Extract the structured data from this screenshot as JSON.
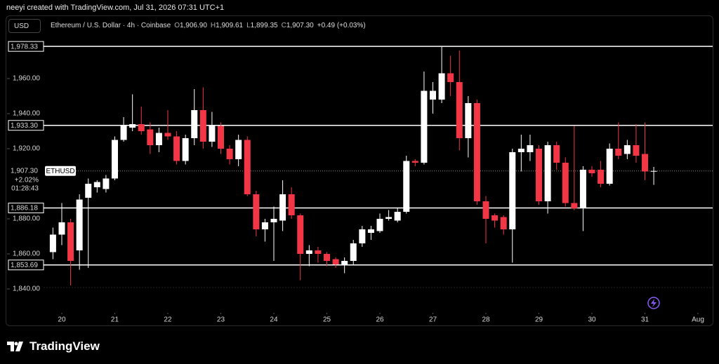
{
  "header": {
    "credit": "neeyi created with TradingView.com, Jul 31, 2026 07:31 UTC+1"
  },
  "chart_data": {
    "type": "candlestick",
    "currency": "USD",
    "symbol": "Ethereum / U.S. Dollar · 4h · Coinbase",
    "ohlc_legend": [
      {
        "key": "O",
        "label": "1,906.90"
      },
      {
        "key": "H",
        "label": "1,909.61"
      },
      {
        "key": "L",
        "label": "1,899.35"
      },
      {
        "key": "C",
        "label": "1,907.30"
      }
    ],
    "change": "+0.49 (+0.03%)",
    "x": [
      19.8333,
      20,
      20.1667,
      20.3333,
      20.5,
      20.6667,
      20.8333,
      21,
      21.1667,
      21.3333,
      21.5,
      21.6667,
      21.8333,
      22,
      22.1667,
      22.3333,
      22.5,
      22.6667,
      22.8333,
      23,
      23.1667,
      23.3333,
      23.5,
      23.6667,
      23.8333,
      24,
      24.1667,
      24.3333,
      24.5,
      24.6667,
      24.8333,
      25,
      25.1667,
      25.3333,
      25.5,
      25.6667,
      25.8333,
      26,
      26.1667,
      26.3333,
      26.5,
      26.6667,
      26.8333,
      27,
      27.1667,
      27.3333,
      27.5,
      27.6667,
      27.8333,
      28,
      28.1667,
      28.3333,
      28.5,
      28.6667,
      28.8333,
      29,
      29.1667,
      29.3333,
      29.5,
      29.6667,
      29.8333,
      30,
      30.1667,
      30.3333,
      30.5,
      30.6667,
      30.8333,
      31,
      31.1667
    ],
    "open": [
      1861,
      1871,
      1878,
      1862,
      1892,
      1898,
      1897,
      1903,
      1925,
      1932,
      1934,
      1931,
      1922,
      1929,
      1927,
      1913,
      1926,
      1942,
      1924,
      1933,
      1920,
      1914,
      1925,
      1894,
      1874,
      1878,
      1879,
      1894,
      1882,
      1860,
      1862,
      1860,
      1857,
      1854,
      1856,
      1866,
      1872,
      1873,
      1880,
      1879,
      1884,
      1913,
      1912,
      1948,
      1948,
      1963,
      1958,
      1926,
      1946,
      1890,
      1882,
      1881,
      1874,
      1918,
      1918,
      1920,
      1890,
      1922,
      1912,
      1889,
      1886,
      1908,
      1908,
      1900,
      1920,
      1917,
      1922,
      1917,
      1906.9
    ],
    "high": [
      1875,
      1889,
      1880,
      1894,
      1903,
      1902,
      1905,
      1927,
      1938,
      1951,
      1944,
      1935,
      1932,
      1942,
      1930,
      1928,
      1954,
      1955,
      1941,
      1935,
      1922,
      1928,
      1927,
      1896,
      1880,
      1887,
      1902,
      1898,
      1883,
      1865,
      1864,
      1861,
      1858,
      1858,
      1868,
      1876,
      1876,
      1883,
      1885,
      1886,
      1916,
      1914,
      1964,
      1958,
      1978,
      1973,
      1976,
      1950,
      1948,
      1893,
      1883,
      1882,
      1920,
      1928,
      1928,
      1922,
      1924,
      1924,
      1915,
      1933,
      1910,
      1910,
      1913,
      1923,
      1935,
      1925,
      1934,
      1935,
      1909.61
    ],
    "low": [
      1857,
      1865,
      1842,
      1851,
      1852,
      1895,
      1895,
      1902,
      1924,
      1930,
      1928,
      1917,
      1918,
      1925,
      1911,
      1911,
      1922,
      1920,
      1921,
      1917,
      1911,
      1910,
      1893,
      1870,
      1867,
      1856,
      1873,
      1880,
      1845,
      1853,
      1855,
      1853,
      1852,
      1849,
      1854,
      1864,
      1868,
      1872,
      1879,
      1878,
      1883,
      1910,
      1911,
      1940,
      1946,
      1950,
      1919,
      1915,
      1888,
      1866,
      1875,
      1871,
      1855,
      1907,
      1913,
      1888,
      1883,
      1908,
      1887,
      1885,
      1873,
      1904,
      1898,
      1899,
      1914,
      1914,
      1912,
      1902,
      1899.35
    ],
    "close": [
      1871,
      1878,
      1856,
      1891,
      1900,
      1901,
      1903,
      1925,
      1933,
      1934,
      1930,
      1922,
      1929,
      1927,
      1913,
      1926,
      1942,
      1924,
      1933,
      1920,
      1914,
      1925,
      1894,
      1874,
      1878,
      1880,
      1894,
      1882,
      1860,
      1862,
      1860,
      1856,
      1854,
      1856,
      1866,
      1874,
      1874,
      1880,
      1881,
      1884,
      1913,
      1912,
      1953,
      1953,
      1963,
      1958,
      1926,
      1946,
      1890,
      1880,
      1879,
      1874,
      1918,
      1920,
      1922,
      1890,
      1922,
      1912,
      1889,
      1886,
      1908,
      1906,
      1900,
      1920,
      1916,
      1922,
      1916,
      1907,
      1907.3
    ],
    "up_color": "#ffffff",
    "down_color": "#f23645",
    "xlim": [
      18.967,
      32.278
    ],
    "xticks": [
      20,
      21,
      22,
      23,
      24,
      25,
      26,
      27,
      28,
      29,
      30,
      31,
      {
        "value": 32,
        "label": "Aug"
      }
    ],
    "ylim": [
      1828.8,
      1982.8
    ],
    "yticks": [
      {
        "value": 1840,
        "label": "1,840.00"
      },
      {
        "value": 1860,
        "label": "1,860.00"
      },
      {
        "value": 1880,
        "label": "1,880.00"
      },
      {
        "value": 1920,
        "label": "1,920.00"
      },
      {
        "value": 1940,
        "label": "1,940.00"
      },
      {
        "value": 1960,
        "label": "1,960.00"
      }
    ],
    "levels": [
      {
        "value": 1978.33,
        "label": "1,978.33"
      },
      {
        "value": 1933.3,
        "label": "1,933.30"
      },
      {
        "value": 1886.18,
        "label": "1,886.18"
      },
      {
        "value": 1853.69,
        "label": "1,853.69"
      }
    ],
    "last_price": {
      "value": 1907.3,
      "label": "1,907.30"
    },
    "symbol_tag": "ETHUSD",
    "last_change": "+2.02%",
    "countdown": "01:28:43"
  },
  "footer": {
    "brand": "TradingView"
  }
}
